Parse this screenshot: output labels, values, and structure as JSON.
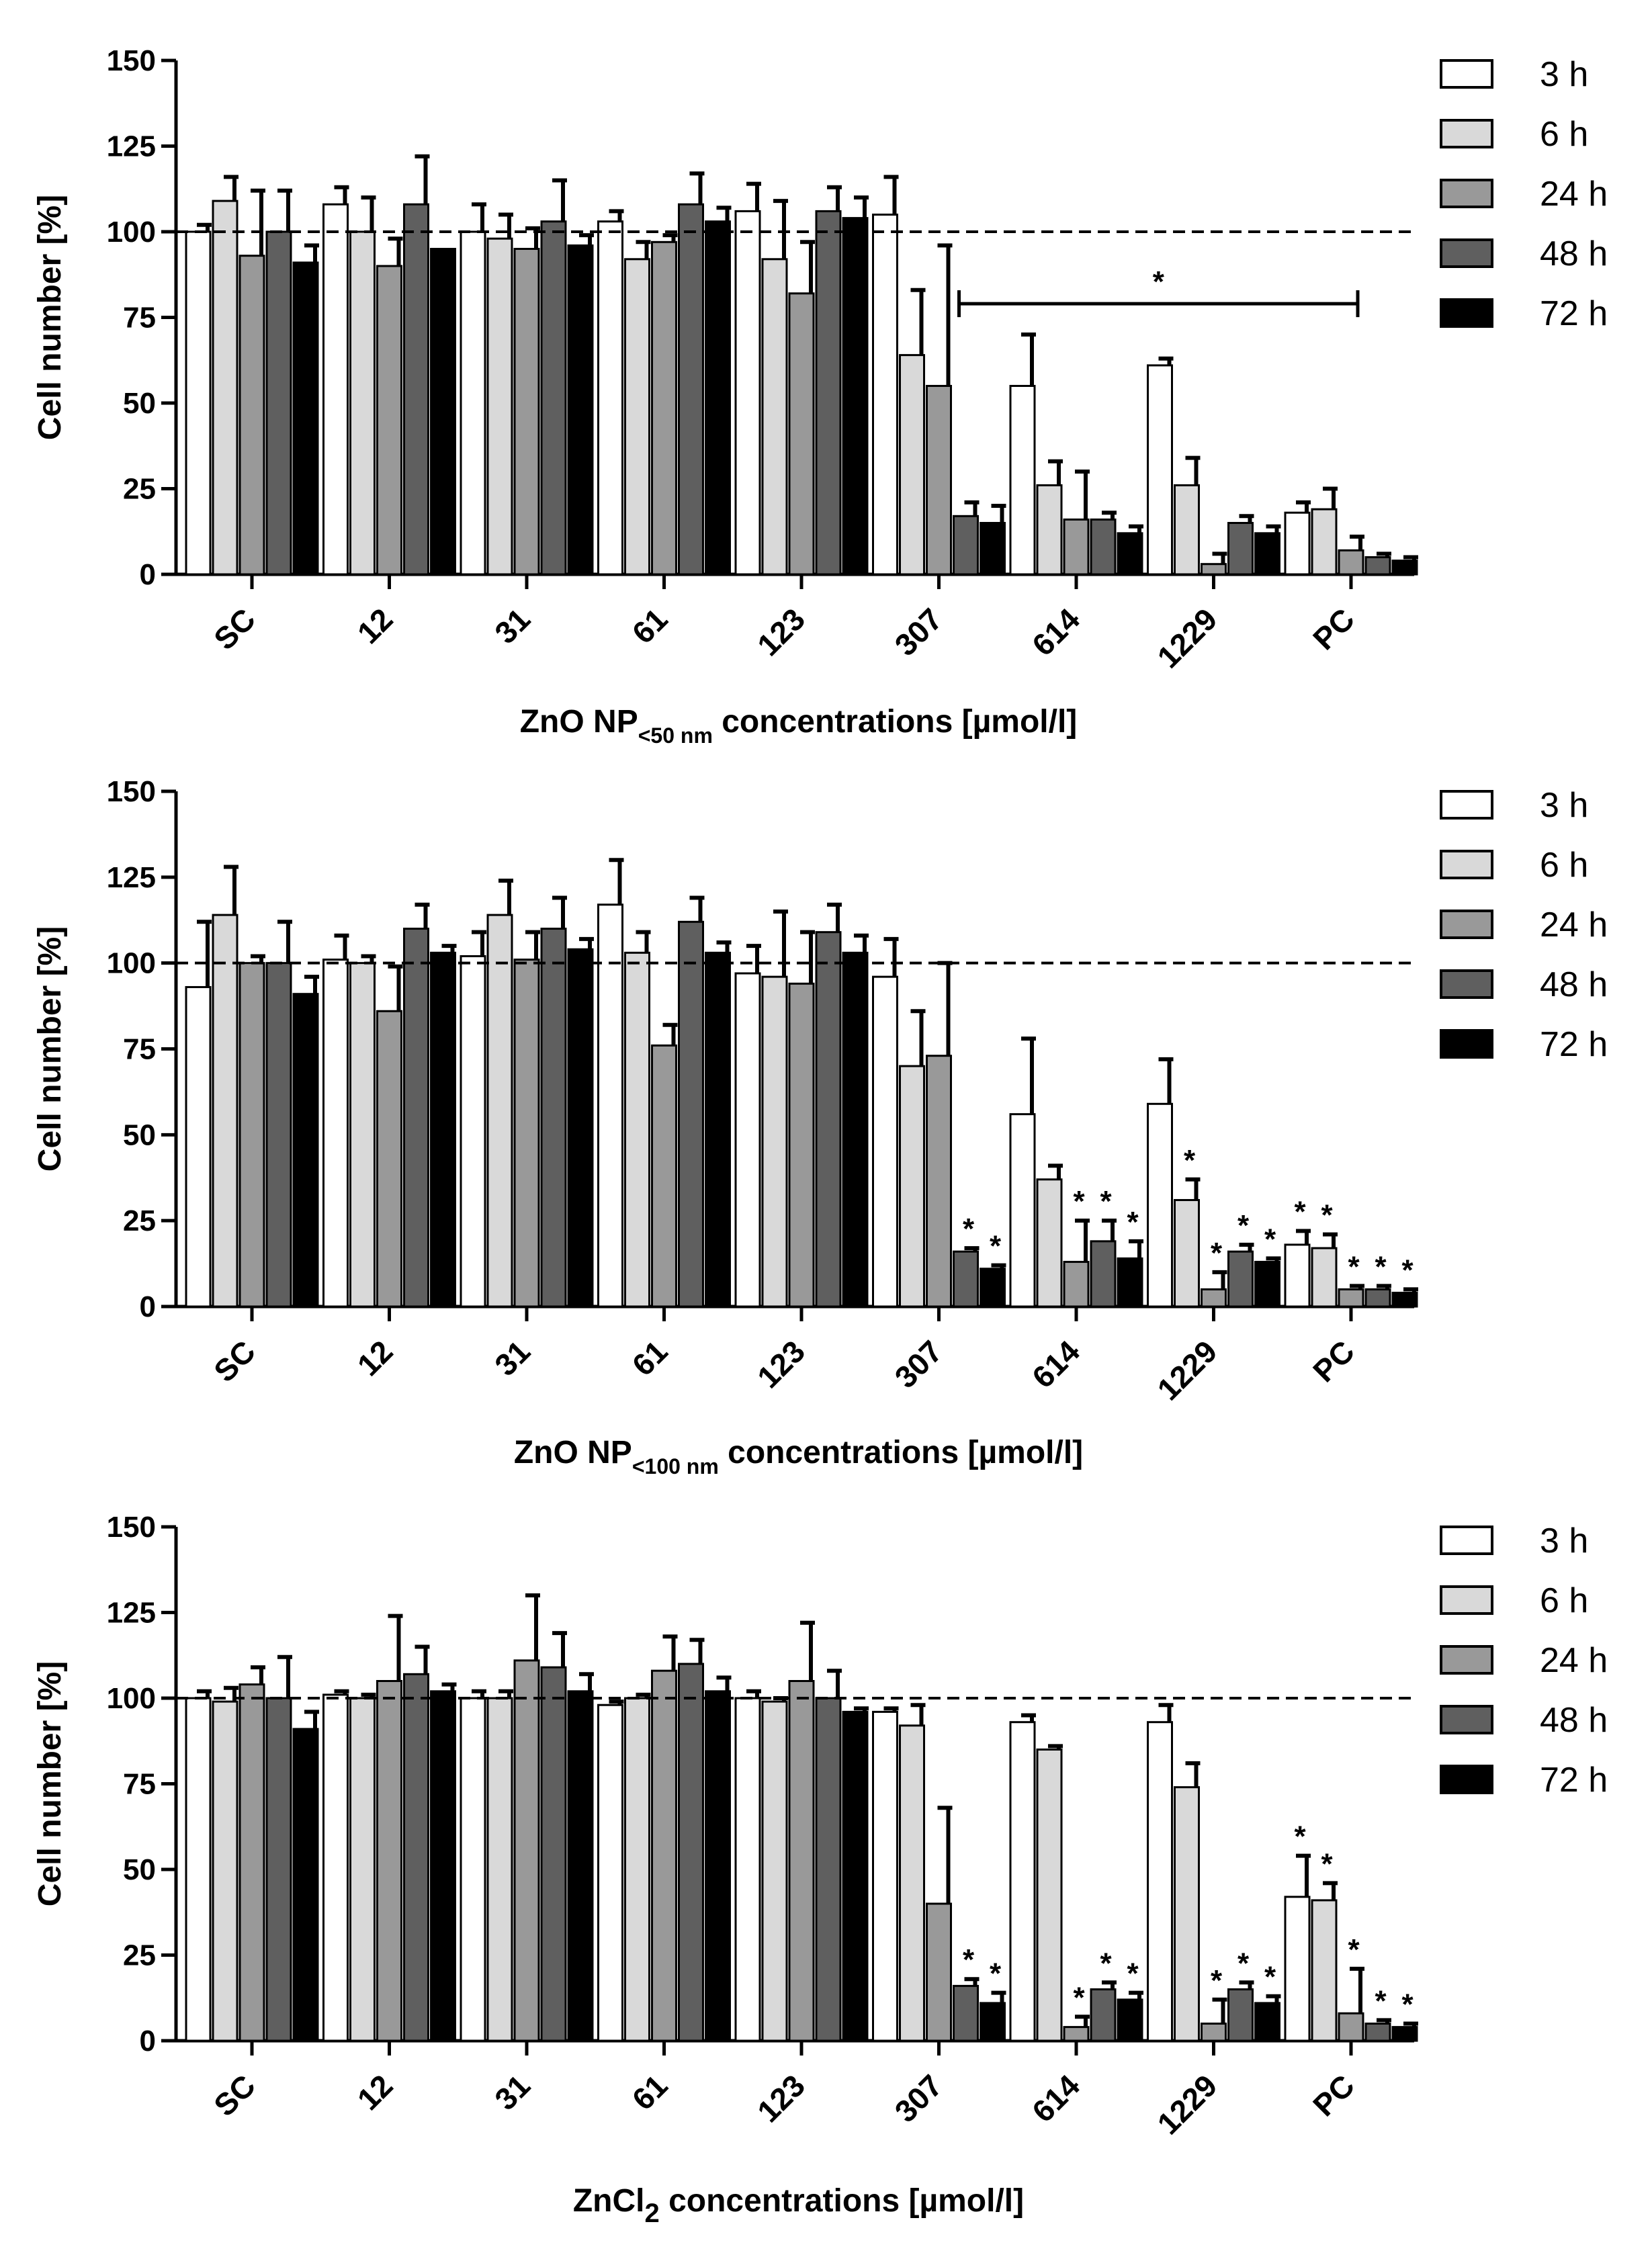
{
  "chart_data": [
    {
      "type": "bar",
      "ylabel": "Cell number [%]",
      "xlabel": {
        "main": "ZnO NP",
        "sub": "<50 nm",
        "rest": " concentrations [µmol/l]"
      },
      "ylim": [
        0,
        150
      ],
      "yticks": [
        "0",
        "25",
        "50",
        "75",
        "100",
        "125",
        "150"
      ],
      "reference_line": 100,
      "categories": [
        "SC",
        "12",
        "31",
        "61",
        "123",
        "307",
        "614",
        "1229",
        "PC"
      ],
      "series": [
        {
          "name": "3 h",
          "color": "#ffffff",
          "values": [
            100,
            108,
            100,
            103,
            106,
            105,
            55,
            61,
            18
          ],
          "errors": [
            2,
            5,
            8,
            3,
            8,
            11,
            15,
            2,
            3
          ]
        },
        {
          "name": "6 h",
          "color": "#d9d9d9",
          "values": [
            109,
            100,
            98,
            92,
            92,
            64,
            26,
            26,
            19
          ],
          "errors": [
            7,
            10,
            7,
            5,
            17,
            19,
            7,
            8,
            6
          ]
        },
        {
          "name": "24 h",
          "color": "#999999",
          "values": [
            93,
            90,
            95,
            97,
            82,
            55,
            16,
            3,
            7
          ],
          "errors": [
            19,
            8,
            6,
            2,
            15,
            41,
            14,
            3,
            4
          ]
        },
        {
          "name": "48 h",
          "color": "#5f5f5f",
          "values": [
            100,
            108,
            103,
            108,
            106,
            17,
            16,
            15,
            5
          ],
          "errors": [
            12,
            14,
            12,
            9,
            7,
            4,
            2,
            2,
            1
          ]
        },
        {
          "name": "72 h",
          "color": "#000000",
          "values": [
            91,
            95,
            96,
            103,
            104,
            15,
            12,
            12,
            4
          ],
          "errors": [
            5,
            0,
            3,
            4,
            6,
            5,
            2,
            2,
            1
          ]
        }
      ],
      "significance_bracket": {
        "from": "307",
        "to": "PC",
        "label": "*"
      },
      "stars": []
    },
    {
      "type": "bar",
      "ylabel": "Cell number [%]",
      "xlabel": {
        "main": "ZnO NP",
        "sub": "<100 nm",
        "rest": " concentrations [µmol/l]"
      },
      "ylim": [
        0,
        150
      ],
      "yticks": [
        "0",
        "25",
        "50",
        "75",
        "100",
        "125",
        "150"
      ],
      "reference_line": 100,
      "categories": [
        "SC",
        "12",
        "31",
        "61",
        "123",
        "307",
        "614",
        "1229",
        "PC"
      ],
      "series": [
        {
          "name": "3 h",
          "color": "#ffffff",
          "values": [
            93,
            101,
            102,
            117,
            97,
            96,
            56,
            59,
            18
          ],
          "errors": [
            19,
            7,
            7,
            13,
            8,
            11,
            22,
            13,
            4
          ]
        },
        {
          "name": "6 h",
          "color": "#d9d9d9",
          "values": [
            114,
            100,
            114,
            103,
            96,
            70,
            37,
            31,
            17
          ],
          "errors": [
            14,
            2,
            10,
            6,
            19,
            16,
            4,
            6,
            4
          ]
        },
        {
          "name": "24 h",
          "color": "#999999",
          "values": [
            100,
            86,
            101,
            76,
            94,
            73,
            13,
            5,
            5
          ],
          "errors": [
            2,
            13,
            8,
            6,
            15,
            27,
            12,
            5,
            1
          ]
        },
        {
          "name": "48 h",
          "color": "#5f5f5f",
          "values": [
            100,
            110,
            110,
            112,
            109,
            16,
            19,
            16,
            5
          ],
          "errors": [
            12,
            7,
            9,
            7,
            8,
            1,
            6,
            2,
            1
          ]
        },
        {
          "name": "72 h",
          "color": "#000000",
          "values": [
            91,
            103,
            104,
            103,
            103,
            11,
            14,
            13,
            4
          ],
          "errors": [
            5,
            2,
            3,
            3,
            5,
            1,
            5,
            1,
            1
          ]
        }
      ],
      "significance_bracket": null,
      "stars": [
        {
          "category": "307",
          "series": 3
        },
        {
          "category": "307",
          "series": 4
        },
        {
          "category": "614",
          "series": 2
        },
        {
          "category": "614",
          "series": 3
        },
        {
          "category": "614",
          "series": 4
        },
        {
          "category": "1229",
          "series": 1
        },
        {
          "category": "1229",
          "series": 2
        },
        {
          "category": "1229",
          "series": 3
        },
        {
          "category": "1229",
          "series": 4
        },
        {
          "category": "PC",
          "series": 0
        },
        {
          "category": "PC",
          "series": 1
        },
        {
          "category": "PC",
          "series": 2
        },
        {
          "category": "PC",
          "series": 3
        },
        {
          "category": "PC",
          "series": 4
        }
      ]
    },
    {
      "type": "bar",
      "ylabel": "Cell number [%]",
      "xlabel": {
        "main": "ZnCl",
        "sub": "2",
        "rest": " concentrations [µmol/l]"
      },
      "ylim": [
        0,
        150
      ],
      "yticks": [
        "0",
        "25",
        "50",
        "75",
        "100",
        "125",
        "150"
      ],
      "reference_line": 100,
      "categories": [
        "SC",
        "12",
        "31",
        "61",
        "123",
        "307",
        "614",
        "1229",
        "PC"
      ],
      "series": [
        {
          "name": "3 h",
          "color": "#ffffff",
          "values": [
            100,
            101,
            100,
            98,
            100,
            96,
            93,
            93,
            42
          ],
          "errors": [
            2,
            1,
            2,
            1,
            2,
            1,
            2,
            5,
            12
          ]
        },
        {
          "name": "6 h",
          "color": "#d9d9d9",
          "values": [
            99,
            100,
            100,
            100,
            99,
            92,
            85,
            74,
            41
          ],
          "errors": [
            4,
            1,
            2,
            1,
            1,
            6,
            1,
            7,
            5
          ]
        },
        {
          "name": "24 h",
          "color": "#999999",
          "values": [
            104,
            105,
            111,
            108,
            105,
            40,
            4,
            5,
            8
          ],
          "errors": [
            5,
            19,
            19,
            10,
            17,
            28,
            3,
            7,
            13
          ]
        },
        {
          "name": "48 h",
          "color": "#5f5f5f",
          "values": [
            100,
            107,
            109,
            110,
            100,
            16,
            15,
            15,
            5
          ],
          "errors": [
            12,
            8,
            10,
            7,
            8,
            2,
            2,
            2,
            1
          ]
        },
        {
          "name": "72 h",
          "color": "#000000",
          "values": [
            91,
            102,
            102,
            102,
            96,
            11,
            12,
            11,
            4
          ],
          "errors": [
            5,
            2,
            5,
            4,
            1,
            3,
            2,
            2,
            1
          ]
        }
      ],
      "significance_bracket": null,
      "stars": [
        {
          "category": "307",
          "series": 3
        },
        {
          "category": "307",
          "series": 4
        },
        {
          "category": "614",
          "series": 2
        },
        {
          "category": "614",
          "series": 3
        },
        {
          "category": "614",
          "series": 4
        },
        {
          "category": "1229",
          "series": 2
        },
        {
          "category": "1229",
          "series": 3
        },
        {
          "category": "1229",
          "series": 4
        },
        {
          "category": "PC",
          "series": 0
        },
        {
          "category": "PC",
          "series": 1
        },
        {
          "category": "PC",
          "series": 2
        },
        {
          "category": "PC",
          "series": 3
        },
        {
          "category": "PC",
          "series": 4
        }
      ]
    }
  ],
  "star_symbol": "*"
}
